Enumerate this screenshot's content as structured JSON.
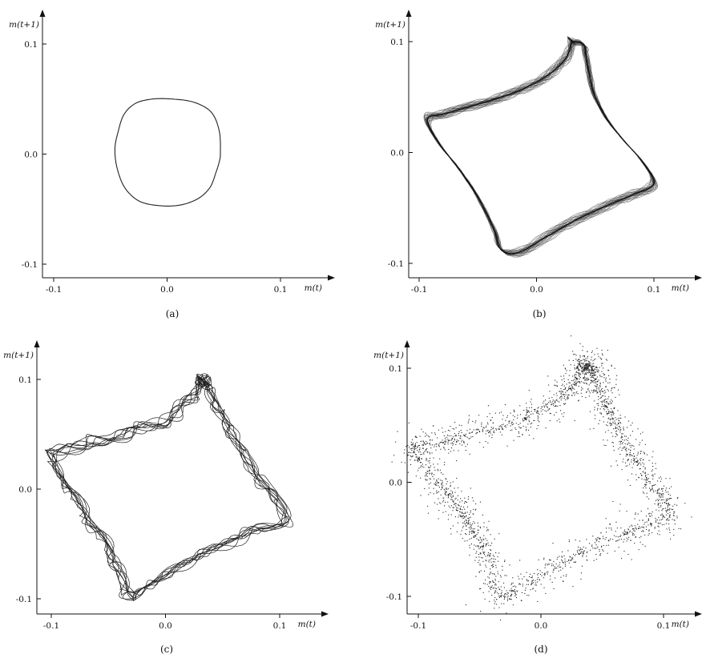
{
  "chart_data": [
    {
      "panel": "a",
      "caption": "(a)",
      "type": "line",
      "xlabel": "m(t)",
      "ylabel": "m(t+1)",
      "xlim": [
        -0.1,
        0.1
      ],
      "ylim": [
        -0.1,
        0.1
      ],
      "xticks": [
        "-0.1",
        "0.0",
        "0.1"
      ],
      "yticks": [
        "0.1",
        "0.0",
        "-0.1"
      ],
      "grid": false,
      "series": [
        {
          "style": "rounded-loop",
          "x": [
            0.047,
            0.046,
            0.039,
            0.024,
            0.005,
            -0.013,
            -0.028,
            -0.038,
            -0.043,
            -0.046,
            -0.044,
            -0.037,
            -0.024,
            -0.005,
            0.013,
            0.028,
            0.038,
            0.043,
            0.046
          ],
          "y": [
            0.001,
            0.021,
            0.038,
            0.047,
            0.05,
            0.05,
            0.046,
            0.036,
            0.021,
            0.005,
            -0.013,
            -0.031,
            -0.043,
            -0.047,
            -0.046,
            -0.04,
            -0.03,
            -0.017,
            -0.007
          ]
        }
      ]
    },
    {
      "panel": "b",
      "caption": "(b)",
      "type": "line",
      "xlabel": "m(t)",
      "ylabel": "m(t+1)",
      "xlim": [
        -0.1,
        0.1
      ],
      "ylim": [
        -0.1,
        0.1
      ],
      "xticks": [
        "-0.1",
        "0.0",
        "0.1"
      ],
      "yticks": [
        "0.1",
        "0.0",
        "-0.1"
      ],
      "grid": false,
      "series": [
        {
          "style": "dense-band",
          "x": [
            0.03,
            0.025,
            0.01,
            -0.01,
            -0.03,
            -0.055,
            -0.078,
            -0.093,
            -0.083,
            -0.068,
            -0.056,
            -0.045,
            -0.036,
            -0.03,
            -0.015,
            0.01,
            0.035,
            0.06,
            0.082,
            0.1,
            0.09,
            0.075,
            0.06,
            0.05,
            0.045,
            0.042,
            0.04,
            0.03
          ],
          "y": [
            0.1,
            0.085,
            0.07,
            0.058,
            0.05,
            0.042,
            0.035,
            0.03,
            0.008,
            -0.012,
            -0.03,
            -0.05,
            -0.07,
            -0.088,
            -0.09,
            -0.075,
            -0.06,
            -0.048,
            -0.038,
            -0.028,
            -0.008,
            0.01,
            0.03,
            0.05,
            0.07,
            0.088,
            0.098,
            0.1
          ]
        }
      ]
    },
    {
      "panel": "c",
      "caption": "(c)",
      "type": "line",
      "xlabel": "m(t)",
      "ylabel": "m(t+1)",
      "xlim": [
        -0.1,
        0.1
      ],
      "ylim": [
        -0.1,
        0.1
      ],
      "xticks": [
        "-0.1",
        "0.0",
        "0.1"
      ],
      "yticks": [
        "0.1",
        "0.0",
        "-0.1"
      ],
      "grid": false,
      "series": [
        {
          "style": "tangled-loops",
          "x": [
            0.032,
            0.025,
            0.01,
            -0.01,
            -0.03,
            -0.055,
            -0.08,
            -0.1,
            -0.09,
            -0.077,
            -0.065,
            -0.052,
            -0.042,
            -0.035,
            -0.02,
            0.005,
            0.03,
            0.055,
            0.08,
            0.105,
            0.095,
            0.082,
            0.07,
            0.058,
            0.048,
            0.04,
            0.034,
            0.032
          ],
          "y": [
            0.098,
            0.085,
            0.07,
            0.058,
            0.052,
            0.045,
            0.038,
            0.03,
            0.008,
            -0.012,
            -0.032,
            -0.052,
            -0.07,
            -0.095,
            -0.092,
            -0.075,
            -0.06,
            -0.048,
            -0.037,
            -0.028,
            -0.008,
            0.01,
            0.03,
            0.05,
            0.07,
            0.088,
            0.1,
            0.098
          ]
        }
      ]
    },
    {
      "panel": "d",
      "caption": "(d)",
      "type": "scatter",
      "xlabel": "m(t)",
      "ylabel": "m(t+1)",
      "xlim": [
        -0.1,
        0.1
      ],
      "ylim": [
        -0.1,
        0.1
      ],
      "xticks": [
        "-0.1",
        "0.0",
        "0.1"
      ],
      "yticks": [
        "0.1",
        "0.0",
        "-0.1"
      ],
      "grid": false,
      "series": [
        {
          "style": "point-cloud",
          "x": [
            0.035,
            0.025,
            0.01,
            -0.01,
            -0.03,
            -0.06,
            -0.085,
            -0.105,
            -0.09,
            -0.075,
            -0.062,
            -0.05,
            -0.04,
            -0.035,
            -0.015,
            0.01,
            0.035,
            0.06,
            0.085,
            0.105,
            0.095,
            0.082,
            0.07,
            0.06,
            0.052,
            0.045,
            0.04,
            0.035
          ],
          "y": [
            0.1,
            0.085,
            0.07,
            0.058,
            0.05,
            0.042,
            0.035,
            0.03,
            0.008,
            -0.012,
            -0.032,
            -0.052,
            -0.072,
            -0.098,
            -0.092,
            -0.075,
            -0.06,
            -0.048,
            -0.038,
            -0.028,
            -0.008,
            0.01,
            0.03,
            0.05,
            0.07,
            0.088,
            0.102,
            0.1
          ]
        }
      ]
    }
  ]
}
